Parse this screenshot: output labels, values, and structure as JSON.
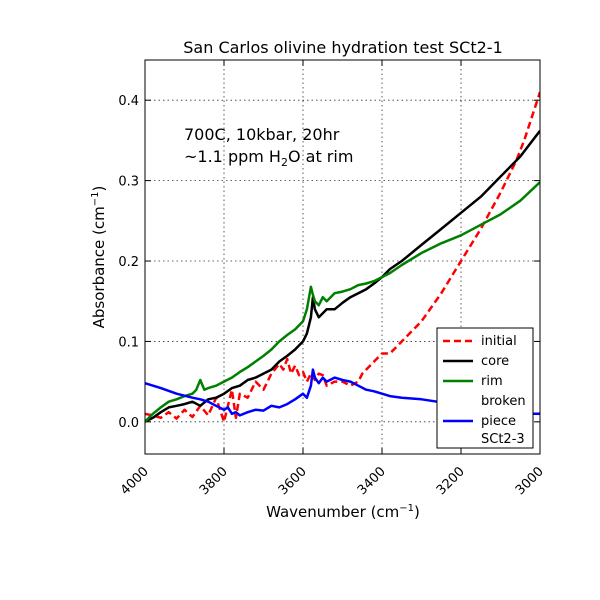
{
  "chart_data": {
    "type": "line",
    "title": "San Carlos olivine hydration test SCt2-1",
    "xlabel": "Wavenumber (cm",
    "xlabel_sup": "−1",
    "xlabel_close": ")",
    "ylabel": "Absorbance (cm",
    "ylabel_sup": "−1",
    "ylabel_close": ")",
    "xlim": [
      4000,
      3000
    ],
    "ylim": [
      -0.04,
      0.45
    ],
    "xticks": [
      4000,
      3800,
      3600,
      3400,
      3200,
      3000
    ],
    "xtick_labels": [
      "4000",
      "3800",
      "3600",
      "3400",
      "3200",
      "3000"
    ],
    "yticks": [
      0.0,
      0.1,
      0.2,
      0.3,
      0.4
    ],
    "ytick_labels": [
      "0.0",
      "0.1",
      "0.2",
      "0.3",
      "0.4"
    ],
    "grid": true,
    "legend_position": "lower-right",
    "annotation_line1": "700C, 10kbar, 20hr",
    "annotation_line2_pre": "~1.1 ppm H",
    "annotation_line2_sub": "2",
    "annotation_line2_post": "O at rim",
    "series": [
      {
        "name": "initial",
        "color": "#ff0000",
        "style": "dashed",
        "x": [
          4000,
          3980,
          3960,
          3940,
          3920,
          3900,
          3880,
          3860,
          3840,
          3820,
          3800,
          3790,
          3780,
          3770,
          3760,
          3740,
          3720,
          3700,
          3680,
          3660,
          3650,
          3640,
          3630,
          3620,
          3610,
          3600,
          3590,
          3580,
          3570,
          3560,
          3550,
          3540,
          3520,
          3500,
          3480,
          3460,
          3450,
          3440,
          3420,
          3400,
          3380,
          3350,
          3300,
          3250,
          3200,
          3150,
          3100,
          3080,
          3060,
          3040,
          3020,
          3000
        ],
        "y": [
          0.01,
          0.008,
          0.005,
          0.012,
          0.004,
          0.015,
          0.006,
          0.02,
          0.008,
          0.03,
          0.0,
          0.02,
          0.04,
          0.005,
          0.035,
          0.03,
          0.05,
          0.04,
          0.06,
          0.072,
          0.065,
          0.078,
          0.06,
          0.07,
          0.058,
          0.062,
          0.05,
          0.06,
          0.052,
          0.06,
          0.058,
          0.045,
          0.05,
          0.05,
          0.045,
          0.05,
          0.06,
          0.065,
          0.075,
          0.085,
          0.085,
          0.1,
          0.125,
          0.16,
          0.2,
          0.24,
          0.285,
          0.305,
          0.325,
          0.35,
          0.38,
          0.41
        ]
      },
      {
        "name": "core",
        "color": "#000000",
        "style": "solid",
        "x": [
          4000,
          3980,
          3960,
          3940,
          3920,
          3900,
          3880,
          3860,
          3840,
          3820,
          3800,
          3780,
          3760,
          3740,
          3720,
          3700,
          3680,
          3660,
          3640,
          3620,
          3600,
          3590,
          3580,
          3575,
          3570,
          3560,
          3550,
          3540,
          3520,
          3500,
          3480,
          3460,
          3440,
          3420,
          3400,
          3380,
          3350,
          3300,
          3250,
          3200,
          3150,
          3100,
          3050,
          3000
        ],
        "y": [
          0.0,
          0.005,
          0.012,
          0.018,
          0.02,
          0.022,
          0.025,
          0.02,
          0.028,
          0.03,
          0.035,
          0.042,
          0.045,
          0.052,
          0.055,
          0.06,
          0.065,
          0.075,
          0.082,
          0.09,
          0.1,
          0.11,
          0.13,
          0.155,
          0.14,
          0.13,
          0.135,
          0.14,
          0.14,
          0.148,
          0.155,
          0.16,
          0.165,
          0.172,
          0.18,
          0.19,
          0.2,
          0.22,
          0.24,
          0.26,
          0.28,
          0.305,
          0.33,
          0.362
        ]
      },
      {
        "name": "rim",
        "color": "#008000",
        "style": "solid",
        "x": [
          4000,
          3980,
          3960,
          3940,
          3920,
          3900,
          3880,
          3870,
          3860,
          3850,
          3840,
          3820,
          3800,
          3780,
          3760,
          3740,
          3720,
          3700,
          3680,
          3660,
          3640,
          3620,
          3600,
          3590,
          3580,
          3575,
          3570,
          3560,
          3550,
          3540,
          3520,
          3500,
          3480,
          3460,
          3440,
          3420,
          3400,
          3380,
          3350,
          3300,
          3250,
          3200,
          3150,
          3100,
          3050,
          3000
        ],
        "y": [
          0.0,
          0.01,
          0.018,
          0.025,
          0.028,
          0.032,
          0.035,
          0.04,
          0.052,
          0.04,
          0.042,
          0.045,
          0.05,
          0.055,
          0.062,
          0.068,
          0.075,
          0.082,
          0.09,
          0.1,
          0.108,
          0.115,
          0.125,
          0.14,
          0.168,
          0.158,
          0.15,
          0.145,
          0.155,
          0.15,
          0.16,
          0.162,
          0.165,
          0.17,
          0.172,
          0.175,
          0.18,
          0.185,
          0.195,
          0.21,
          0.222,
          0.232,
          0.245,
          0.258,
          0.275,
          0.298
        ]
      },
      {
        "name": "broken piece SCt2-3",
        "label_lines": [
          "broken",
          "piece",
          "SCt2-3"
        ],
        "color": "#0000ff",
        "style": "solid",
        "x": [
          4000,
          3960,
          3920,
          3880,
          3860,
          3840,
          3820,
          3800,
          3790,
          3780,
          3770,
          3760,
          3740,
          3720,
          3700,
          3680,
          3660,
          3640,
          3620,
          3600,
          3590,
          3580,
          3575,
          3570,
          3560,
          3550,
          3540,
          3520,
          3500,
          3480,
          3460,
          3440,
          3420,
          3400,
          3380,
          3350,
          3300,
          3260,
          3220,
          3180,
          3150,
          3100,
          3060,
          3040,
          3020,
          3000
        ],
        "y": [
          0.048,
          0.042,
          0.035,
          0.03,
          0.028,
          0.025,
          0.02,
          0.015,
          0.018,
          0.01,
          0.012,
          0.008,
          0.012,
          0.015,
          0.014,
          0.02,
          0.018,
          0.022,
          0.028,
          0.035,
          0.03,
          0.045,
          0.065,
          0.055,
          0.048,
          0.055,
          0.05,
          0.055,
          0.052,
          0.05,
          0.045,
          0.04,
          0.038,
          0.035,
          0.032,
          0.03,
          0.028,
          0.025,
          0.02,
          0.018,
          0.015,
          0.012,
          0.01,
          0.008,
          0.01,
          0.01
        ]
      }
    ]
  }
}
